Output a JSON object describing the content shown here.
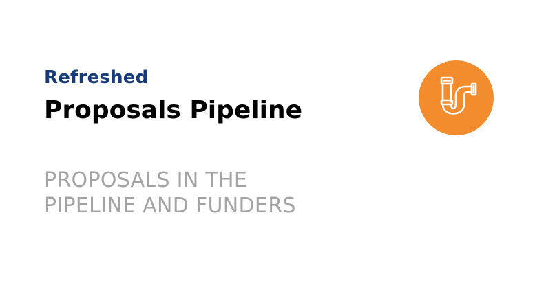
{
  "header": {
    "eyebrow": "Refreshed",
    "title": "Proposals Pipeline"
  },
  "description": {
    "line1": "PROPOSALS IN THE",
    "line2": "PIPELINE AND FUNDERS"
  },
  "icon": {
    "name": "pipe-icon",
    "background_color": "#f28c2c"
  },
  "colors": {
    "eyebrow": "#163b7a",
    "title": "#000000",
    "subtitle": "#a3a3a3"
  }
}
